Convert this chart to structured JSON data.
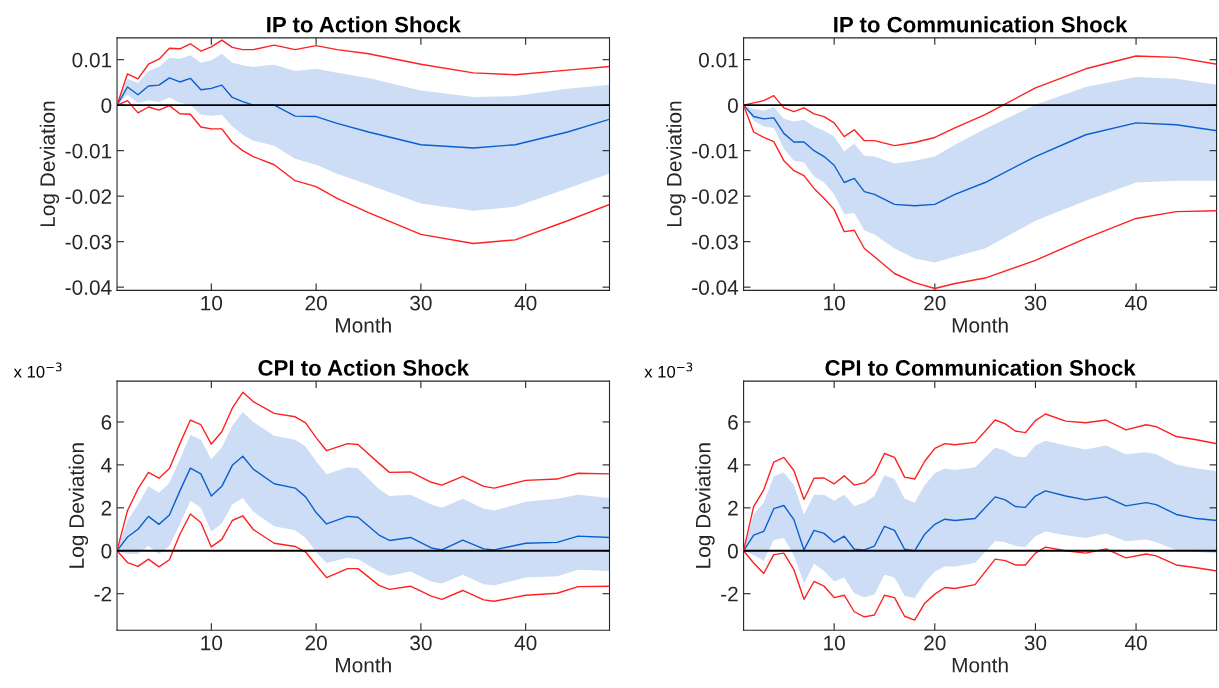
{
  "chart_data": [
    {
      "type": "line",
      "title": "IP to Action Shock",
      "xlabel": "Month",
      "ylabel": "Log Deviation",
      "xlim": [
        1,
        48
      ],
      "xticks": [
        10,
        20,
        30,
        40
      ],
      "ylim": [
        -0.0407,
        0.0148
      ],
      "yticks": [
        -0.04,
        -0.03,
        -0.02,
        -0.01,
        0,
        0.01
      ],
      "x": [
        1,
        2,
        3,
        4,
        5,
        6,
        7,
        8,
        9,
        10,
        11,
        12,
        13,
        14,
        16,
        18,
        20,
        22,
        25,
        30,
        35,
        39,
        44,
        48
      ],
      "ref_lines": [
        {
          "axis": "y",
          "value": 0,
          "color": "#000000"
        }
      ],
      "series": [
        {
          "color": "#0a5fcf",
          "values": [
            0,
            0.004,
            0.0023,
            0.0042,
            0.0044,
            0.006,
            0.0051,
            0.0059,
            0.0034,
            0.0037,
            0.0044,
            0.0017,
            0.0008,
            0,
            0,
            -0.0024,
            -0.0025,
            -0.004,
            -0.0059,
            -0.0087,
            -0.0094,
            -0.0087,
            -0.0059,
            -0.0031
          ],
          "upper": [
            0,
            0.0058,
            0.0049,
            0.0075,
            0.0084,
            0.0104,
            0.0102,
            0.011,
            0.0093,
            0.0099,
            0.0113,
            0.0093,
            0.0088,
            0.0084,
            0.0089,
            0.0075,
            0.008,
            0.0071,
            0.006,
            0.0032,
            0.0018,
            0.002,
            0.0036,
            0.0045
          ],
          "lower": [
            0,
            0.0023,
            0.0005,
            0.001,
            0.0007,
            0.0017,
            0.0005,
            0.0001,
            -0.0021,
            -0.0023,
            -0.0021,
            -0.0047,
            -0.0065,
            -0.0078,
            -0.0089,
            -0.0118,
            -0.0131,
            -0.0151,
            -0.0175,
            -0.0216,
            -0.0232,
            -0.0223,
            -0.0183,
            -0.015
          ]
        },
        {
          "color": "#ff2020",
          "values": [
            0,
            0.0069,
            0.0058,
            0.009,
            0.0101,
            0.0125,
            0.0124,
            0.0135,
            0.0119,
            0.0128,
            0.0143,
            0.0127,
            0.0122,
            0.0122,
            0.0132,
            0.0122,
            0.0131,
            0.0122,
            0.0113,
            0.009,
            0.0071,
            0.0067,
            0.0077,
            0.0085
          ]
        },
        {
          "color": "#ff2020",
          "values": [
            0,
            0.001,
            -0.0017,
            -0.0004,
            -0.0011,
            -0.0001,
            -0.0019,
            -0.002,
            -0.0048,
            -0.0052,
            -0.0052,
            -0.0082,
            -0.01,
            -0.0113,
            -0.0131,
            -0.0166,
            -0.0179,
            -0.0205,
            -0.0236,
            -0.0284,
            -0.0304,
            -0.0296,
            -0.0254,
            -0.0218
          ]
        }
      ]
    },
    {
      "type": "line",
      "title": "IP to Communication Shock",
      "xlabel": "Month",
      "ylabel": "Log Deviation",
      "xlim": [
        1,
        48
      ],
      "xticks": [
        10,
        20,
        30,
        40
      ],
      "ylim": [
        -0.0407,
        0.0148
      ],
      "yticks": [
        -0.04,
        -0.03,
        -0.02,
        -0.01,
        0,
        0.01
      ],
      "x": [
        1,
        2,
        3,
        4,
        5,
        6,
        7,
        8,
        9,
        10,
        11,
        12,
        13,
        14,
        16,
        18,
        20,
        22,
        25,
        30,
        35,
        40,
        44,
        48
      ],
      "ref_lines": [
        {
          "axis": "y",
          "value": 0,
          "color": "#000000"
        }
      ],
      "series": [
        {
          "color": "#0a5fcf",
          "values": [
            0,
            -0.0025,
            -0.003,
            -0.0028,
            -0.0062,
            -0.0081,
            -0.0081,
            -0.01,
            -0.0113,
            -0.0132,
            -0.017,
            -0.0161,
            -0.019,
            -0.0196,
            -0.0218,
            -0.0221,
            -0.0218,
            -0.0196,
            -0.017,
            -0.0113,
            -0.0065,
            -0.0039,
            -0.0043,
            -0.0056
          ],
          "upper": [
            0,
            -0.0008,
            -0.0012,
            -0.0004,
            -0.003,
            -0.0036,
            -0.0032,
            -0.0047,
            -0.0056,
            -0.0069,
            -0.0102,
            -0.0085,
            -0.0111,
            -0.0113,
            -0.0128,
            -0.0122,
            -0.0113,
            -0.0087,
            -0.0052,
            0.0001,
            0.004,
            0.0062,
            0.0058,
            0.0045
          ],
          "lower": [
            0,
            -0.0034,
            -0.0047,
            -0.005,
            -0.0096,
            -0.0122,
            -0.0126,
            -0.0157,
            -0.017,
            -0.0196,
            -0.024,
            -0.0237,
            -0.0275,
            -0.0284,
            -0.0315,
            -0.0337,
            -0.0346,
            -0.0333,
            -0.0315,
            -0.0254,
            -0.021,
            -0.017,
            -0.0166,
            -0.0166
          ]
        },
        {
          "color": "#ff2020",
          "values": [
            0,
            0.0005,
            0.001,
            0.0021,
            -0.0006,
            -0.0014,
            -0.0006,
            -0.0019,
            -0.0025,
            -0.0039,
            -0.0069,
            -0.0054,
            -0.0078,
            -0.0078,
            -0.0089,
            -0.0082,
            -0.0071,
            -0.005,
            -0.0021,
            0.0038,
            0.008,
            0.0108,
            0.0105,
            0.009
          ]
        },
        {
          "color": "#ff2020",
          "values": [
            0,
            -0.0059,
            -0.0071,
            -0.008,
            -0.0122,
            -0.0144,
            -0.0155,
            -0.0183,
            -0.0205,
            -0.0229,
            -0.0278,
            -0.0275,
            -0.0315,
            -0.0333,
            -0.037,
            -0.039,
            -0.0403,
            -0.0392,
            -0.038,
            -0.0341,
            -0.0293,
            -0.0249,
            -0.0234,
            -0.0232
          ]
        }
      ]
    },
    {
      "type": "line",
      "title": "CPI to Action Shock",
      "xlabel": "Month",
      "ylabel": "Log Deviation",
      "annotations": [
        "x 10$^{−3}$"
      ],
      "xlim": [
        1,
        48
      ],
      "xticks": [
        10,
        20,
        30,
        40
      ],
      "ylim": [
        -3.7,
        7.9
      ],
      "yticks": [
        -2,
        0,
        2,
        4,
        6
      ],
      "x": [
        1,
        2,
        3,
        4,
        5,
        6,
        7,
        8,
        9,
        10,
        11,
        12,
        13,
        14,
        16,
        18,
        19,
        20,
        21,
        23,
        24,
        26,
        27,
        29,
        31,
        32,
        34,
        36,
        37,
        40,
        43,
        45,
        48
      ],
      "ref_lines": [
        {
          "axis": "y",
          "value": 0,
          "color": "#000000"
        }
      ],
      "series": [
        {
          "color": "#0a5fcf",
          "values": [
            0,
            0.64,
            1.0,
            1.6,
            1.23,
            1.67,
            2.79,
            3.85,
            3.58,
            2.55,
            3.0,
            3.98,
            4.4,
            3.8,
            3.12,
            2.92,
            2.51,
            1.78,
            1.25,
            1.6,
            1.56,
            0.73,
            0.48,
            0.62,
            0.13,
            0.04,
            0.5,
            0.09,
            0.04,
            0.35,
            0.39,
            0.68,
            0.62
          ],
          "upper": [
            0,
            1.41,
            2.15,
            3.0,
            2.7,
            3.16,
            4.26,
            5.39,
            5.17,
            4.26,
            4.81,
            5.82,
            6.46,
            6.0,
            5.36,
            5.17,
            4.86,
            4.17,
            3.56,
            3.89,
            3.83,
            2.88,
            2.55,
            2.61,
            2.15,
            2.0,
            2.42,
            1.96,
            1.87,
            2.28,
            2.42,
            2.61,
            2.46
          ],
          "lower": [
            0,
            -0.15,
            -0.15,
            0.22,
            -0.15,
            0.22,
            1.23,
            2.33,
            2.0,
            0.9,
            1.27,
            2.15,
            2.46,
            1.82,
            1.14,
            0.95,
            0.59,
            -0.06,
            -0.57,
            -0.33,
            -0.39,
            -0.97,
            -1.16,
            -0.97,
            -1.43,
            -1.52,
            -1.12,
            -1.56,
            -1.61,
            -1.25,
            -1.19,
            -0.88,
            -0.94
          ]
        },
        {
          "color": "#ff2020",
          "values": [
            0,
            1.87,
            2.88,
            3.65,
            3.38,
            3.83,
            4.99,
            6.09,
            5.87,
            4.97,
            5.54,
            6.64,
            7.38,
            6.95,
            6.4,
            6.24,
            5.96,
            5.27,
            4.66,
            4.99,
            4.95,
            4.07,
            3.65,
            3.67,
            3.19,
            3.06,
            3.47,
            3.0,
            2.92,
            3.28,
            3.34,
            3.61,
            3.58
          ]
        },
        {
          "color": "#ff2020",
          "values": [
            0,
            -0.55,
            -0.73,
            -0.39,
            -0.75,
            -0.42,
            0.77,
            1.71,
            1.32,
            0.18,
            0.53,
            1.41,
            1.63,
            0.99,
            0.35,
            0.2,
            -0.06,
            -0.66,
            -1.25,
            -0.83,
            -0.83,
            -1.61,
            -1.8,
            -1.65,
            -2.11,
            -2.26,
            -1.85,
            -2.29,
            -2.35,
            -2.07,
            -1.98,
            -1.67,
            -1.65
          ]
        }
      ]
    },
    {
      "type": "line",
      "title": "CPI to Communication Shock",
      "xlabel": "Month",
      "ylabel": "Log Deviation",
      "annotations": [
        "x 10$^{−3}$"
      ],
      "xlim": [
        1,
        48
      ],
      "xticks": [
        10,
        20,
        30,
        40
      ],
      "ylim": [
        -3.7,
        7.9
      ],
      "yticks": [
        -2,
        0,
        2,
        4,
        6
      ],
      "x": [
        1,
        2,
        3,
        4,
        5,
        6,
        7,
        8,
        9,
        10,
        11,
        12,
        13,
        14,
        15,
        16,
        17,
        18,
        19,
        20,
        21,
        22,
        24,
        26,
        27,
        28,
        29,
        30,
        31,
        33,
        35,
        37,
        39,
        41,
        42,
        44,
        46,
        48
      ],
      "ref_lines": [
        {
          "axis": "y",
          "value": 0,
          "color": "#000000"
        }
      ],
      "series": [
        {
          "color": "#0a5fcf",
          "values": [
            0,
            0.73,
            0.9,
            1.96,
            2.11,
            1.45,
            0.04,
            0.95,
            0.81,
            0.4,
            0.68,
            0.07,
            0.04,
            0.22,
            1.14,
            0.95,
            0.07,
            0,
            0.77,
            1.23,
            1.47,
            1.41,
            1.5,
            2.51,
            2.37,
            2.06,
            2.02,
            2.55,
            2.79,
            2.55,
            2.37,
            2.51,
            2.09,
            2.24,
            2.15,
            1.69,
            1.5,
            1.41
          ],
          "upper": [
            0,
            1.69,
            2.24,
            3.47,
            3.65,
            3.06,
            1.69,
            2.61,
            2.61,
            2.33,
            2.61,
            2.09,
            2.24,
            2.55,
            3.52,
            3.34,
            2.42,
            2.24,
            3.06,
            3.61,
            3.83,
            3.76,
            3.89,
            4.81,
            4.66,
            4.39,
            4.35,
            4.9,
            5.12,
            4.9,
            4.72,
            4.9,
            4.5,
            4.59,
            4.5,
            4.02,
            3.83,
            3.71
          ],
          "lower": [
            0,
            -0.2,
            -0.46,
            0.5,
            0.59,
            -0.22,
            -1.52,
            -0.61,
            -0.94,
            -1.43,
            -1.25,
            -1.98,
            -2.17,
            -2.04,
            -1.12,
            -1.25,
            -2.11,
            -2.2,
            -1.49,
            -0.97,
            -0.73,
            -0.73,
            -0.57,
            0.46,
            0.4,
            0.22,
            0.17,
            0.68,
            0.9,
            0.72,
            0.59,
            0.81,
            0.44,
            0.53,
            0.4,
            0.04,
            -0.06,
            -0.11
          ]
        },
        {
          "color": "#ff2020",
          "values": [
            0,
            2.06,
            2.84,
            4.13,
            4.35,
            3.74,
            2.39,
            3.38,
            3.39,
            3.12,
            3.49,
            3.06,
            3.16,
            3.56,
            4.53,
            4.35,
            3.43,
            3.34,
            4.17,
            4.77,
            4.99,
            4.94,
            5.05,
            6.09,
            5.91,
            5.58,
            5.5,
            6.06,
            6.37,
            6.04,
            5.96,
            6.09,
            5.63,
            5.87,
            5.78,
            5.32,
            5.17,
            4.99
          ]
        },
        {
          "color": "#ff2020",
          "values": [
            0,
            -0.57,
            -1.06,
            -0.18,
            -0.11,
            -0.88,
            -2.26,
            -1.43,
            -1.65,
            -2.18,
            -2.07,
            -2.84,
            -3.08,
            -2.99,
            -2.07,
            -2.18,
            -3.05,
            -3.23,
            -2.44,
            -2.02,
            -1.71,
            -1.76,
            -1.58,
            -0.39,
            -0.46,
            -0.66,
            -0.66,
            -0.11,
            0.17,
            0,
            -0.11,
            0.09,
            -0.33,
            -0.15,
            -0.24,
            -0.66,
            -0.79,
            -0.94
          ]
        }
      ]
    }
  ]
}
